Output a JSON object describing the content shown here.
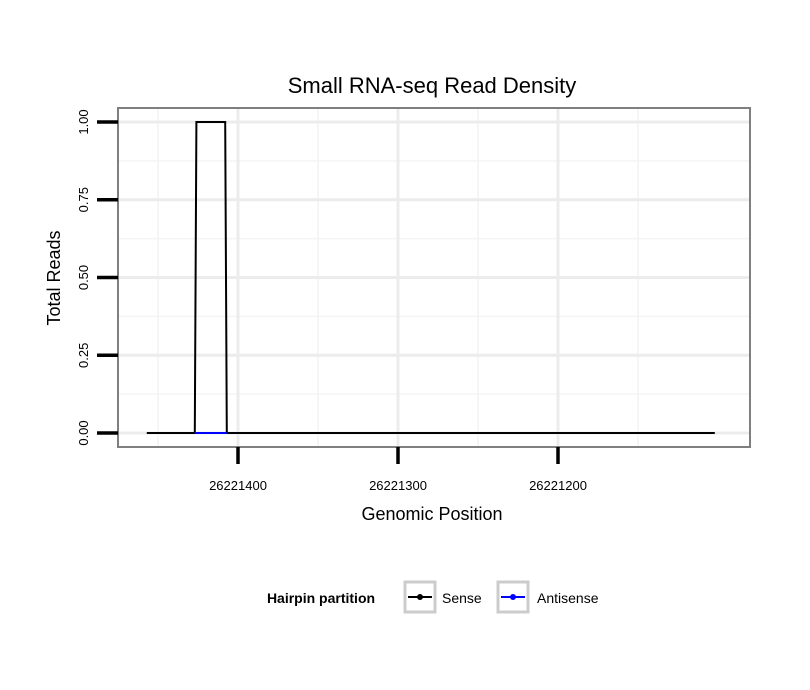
{
  "chart_data": {
    "type": "line",
    "title": "Small RNA-seq Read Density",
    "xlabel": "Genomic Position",
    "ylabel": "Total Reads",
    "x_reversed": true,
    "xlim": [
      26221475,
      26221080
    ],
    "ylim": [
      -0.045,
      1.045
    ],
    "x_ticks": [
      26221400,
      26221300,
      26221200
    ],
    "x_tick_labels": [
      "26221400",
      "26221300",
      "26221200"
    ],
    "y_ticks": [
      0,
      0.25,
      0.5,
      0.75,
      1.0
    ],
    "y_tick_labels": [
      "0.00",
      "0.25",
      "0.50",
      "0.75",
      "1.00"
    ],
    "grid": true,
    "legend": {
      "title": "Hairpin partition",
      "position": "bottom"
    },
    "series": [
      {
        "name": "Sense",
        "color": "#000000",
        "x": [
          26221457,
          26221427,
          26221426,
          26221408,
          26221407,
          26221102
        ],
        "y": [
          0,
          0,
          1,
          1,
          0,
          0
        ]
      },
      {
        "name": "Antisense",
        "color": "#0000ff",
        "x": [
          26221427,
          26221407
        ],
        "y": [
          0,
          0
        ]
      }
    ]
  }
}
